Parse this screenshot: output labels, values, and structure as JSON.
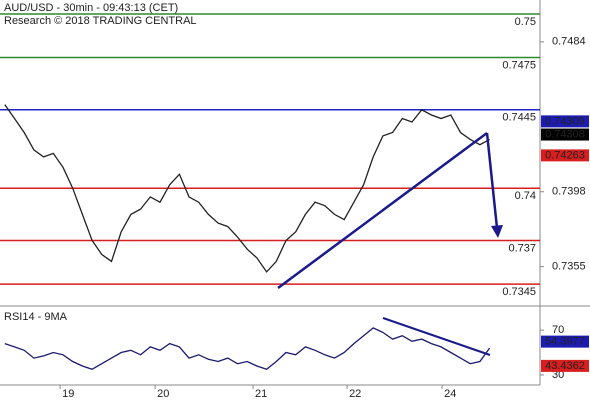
{
  "chart_data": [
    {
      "type": "line",
      "title": "AUD/USD - 30min - 09:43:13 (CET)",
      "subtitle": "Research © 2018 TRADING CENTRAL",
      "values": [
        0.7448,
        0.744,
        0.7432,
        0.7422,
        0.7418,
        0.742,
        0.7412,
        0.74,
        0.7385,
        0.737,
        0.7362,
        0.7358,
        0.7375,
        0.7385,
        0.7388,
        0.7395,
        0.7392,
        0.7402,
        0.7408,
        0.7395,
        0.7392,
        0.7385,
        0.738,
        0.7378,
        0.7372,
        0.7365,
        0.736,
        0.7352,
        0.7358,
        0.737,
        0.7375,
        0.7385,
        0.7392,
        0.739,
        0.7385,
        0.7382,
        0.7392,
        0.7402,
        0.7418,
        0.743,
        0.7432,
        0.744,
        0.7438,
        0.7445,
        0.7442,
        0.744,
        0.7442,
        0.7432,
        0.7428,
        0.7425,
        0.7428
      ],
      "color": "#222222",
      "xlim": [
        -0.5,
        55.2
      ],
      "xticks": [
        {
          "value": 5.7,
          "label": "19"
        },
        {
          "value": 15.5,
          "label": "20"
        },
        {
          "value": 25.6,
          "label": "21"
        },
        {
          "value": 35.3,
          "label": "22"
        },
        {
          "value": 45.1,
          "label": "24"
        }
      ],
      "ylim": [
        0.7333,
        0.7508
      ],
      "yticks": [
        0.7484,
        0.7398,
        0.7355
      ],
      "levels": [
        {
          "value": 0.75,
          "color": "#2e8b2e"
        },
        {
          "value": 0.7475,
          "color": "#2e8b2e"
        },
        {
          "value": 0.7445,
          "color": "#2323c8"
        },
        {
          "value": 0.74,
          "color": "#d81e1e"
        },
        {
          "value": 0.737,
          "color": "#d81e1e"
        },
        {
          "value": 0.7345,
          "color": "#d81e1e"
        }
      ],
      "price_tags": [
        {
          "value": 0.74309,
          "color": "#1c1cb0"
        },
        {
          "value": 0.74308,
          "color": "#000000"
        },
        {
          "value": 0.74263,
          "color": "#d81e1e"
        }
      ]
    },
    {
      "type": "line",
      "title": "RSI14 - 9MA",
      "values": [
        58,
        55,
        52,
        45,
        47,
        50,
        48,
        42,
        38,
        35,
        40,
        45,
        50,
        52,
        48,
        55,
        52,
        58,
        55,
        45,
        48,
        44,
        42,
        45,
        40,
        42,
        38,
        35,
        42,
        50,
        48,
        55,
        52,
        48,
        45,
        50,
        58,
        65,
        72,
        68,
        62,
        65,
        60,
        62,
        58,
        55,
        50,
        45,
        40,
        42,
        54
      ],
      "color": "#1a1a6e",
      "xlim": [
        -0.5,
        55.2
      ],
      "ylim": [
        21,
        88
      ],
      "yticks": [
        70,
        30
      ],
      "price_tags": [
        {
          "value": 54.3977,
          "color": "#1c1cb0"
        },
        {
          "value": 43.4362,
          "color": "#d81e1e"
        }
      ]
    }
  ]
}
